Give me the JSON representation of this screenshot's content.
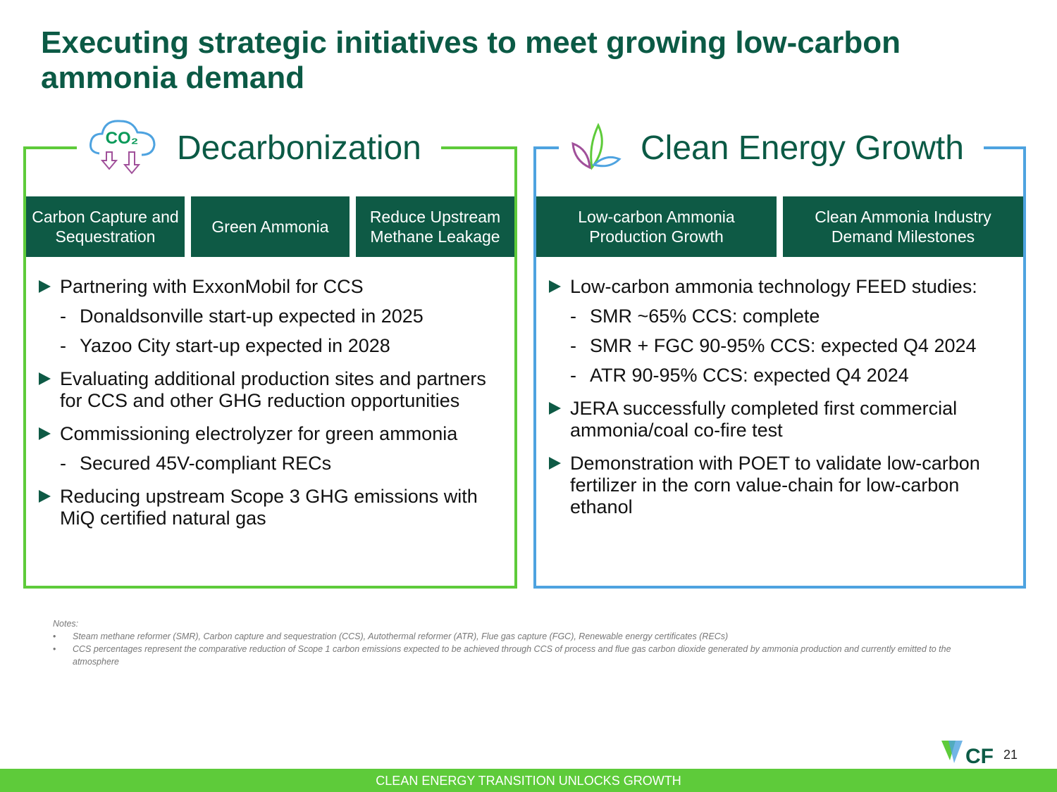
{
  "title": "Executing strategic initiatives to meet growing low-carbon ammonia demand",
  "panels": [
    {
      "heading": "Decarbonization",
      "icon_text": "CO₂",
      "tabs": [
        "Carbon Capture and Sequestration",
        "Green Ammonia",
        "Reduce Upstream Methane Leakage"
      ],
      "bullets": [
        {
          "text": "Partnering with ExxonMobil for CCS",
          "subs": [
            "Donaldsonville start-up expected in 2025",
            "Yazoo City start-up expected in 2028"
          ]
        },
        {
          "text": "Evaluating additional production sites and partners for CCS and other GHG reduction opportunities",
          "subs": []
        },
        {
          "text": "Commissioning electrolyzer for green ammonia",
          "subs": [
            "Secured 45V-compliant RECs"
          ]
        },
        {
          "text": "Reducing upstream Scope 3 GHG emissions with MiQ certified natural gas",
          "subs": []
        }
      ]
    },
    {
      "heading": "Clean Energy Growth",
      "tabs": [
        "Low-carbon Ammonia Production Growth",
        "Clean Ammonia Industry Demand Milestones"
      ],
      "bullets": [
        {
          "text": "Low-carbon ammonia technology FEED studies:",
          "subs": [
            "SMR ~65% CCS: complete",
            "SMR + FGC 90-95% CCS: expected Q4 2024",
            "ATR 90-95% CCS: expected Q4 2024"
          ]
        },
        {
          "text": "JERA successfully completed first commercial ammonia/coal co-fire test",
          "subs": []
        },
        {
          "text": "Demonstration with POET to validate low-carbon fertilizer in the corn value-chain for low-carbon ethanol",
          "subs": []
        }
      ]
    }
  ],
  "notes": {
    "label": "Notes:",
    "items": [
      "Steam methane reformer (SMR), Carbon capture and sequestration (CCS), Autothermal reformer (ATR), Flue gas capture (FGC), Renewable energy certificates (RECs)",
      "CCS percentages represent the comparative reduction of Scope 1 carbon emissions expected to be achieved through CCS of process and flue gas carbon dioxide generated by ammonia production and currently emitted to the atmosphere"
    ]
  },
  "logo": "CF",
  "page_number": "21",
  "footer": "CLEAN ENERGY TRANSITION UNLOCKS GROWTH"
}
